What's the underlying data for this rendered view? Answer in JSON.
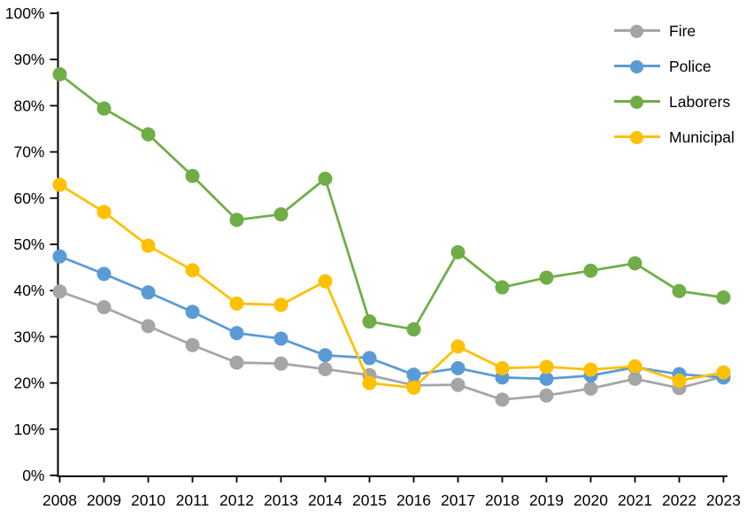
{
  "chart_data": {
    "type": "line",
    "title": "",
    "xlabel": "",
    "ylabel": "",
    "x": [
      2008,
      2009,
      2010,
      2011,
      2012,
      2013,
      2014,
      2015,
      2016,
      2017,
      2018,
      2019,
      2020,
      2021,
      2022,
      2023
    ],
    "ylim": [
      0,
      100
    ],
    "ytick_step": 10,
    "ytick_suffix": "%",
    "grid": false,
    "legend_position": "top-right",
    "axis_color": "#000000",
    "text_color": "#000000",
    "background_color": "#FFFFFF",
    "marker": "circle",
    "series": [
      {
        "name": "Fire",
        "color": "#A5A5A5",
        "values": [
          39.8,
          36.4,
          32.3,
          28.2,
          24.4,
          24.2,
          23.0,
          21.7,
          19.5,
          19.6,
          16.4,
          17.3,
          18.8,
          20.9,
          18.9,
          21.4
        ]
      },
      {
        "name": "Police",
        "color": "#5B9BD5",
        "values": [
          47.4,
          43.6,
          39.6,
          35.4,
          30.8,
          29.6,
          26.0,
          25.4,
          21.8,
          23.2,
          21.2,
          20.9,
          21.6,
          23.4,
          21.9,
          21.2
        ]
      },
      {
        "name": "Laborers",
        "color": "#70AD47",
        "values": [
          86.8,
          79.4,
          73.8,
          64.8,
          55.3,
          56.5,
          64.2,
          33.3,
          31.6,
          48.3,
          40.7,
          42.8,
          44.3,
          45.9,
          39.9,
          38.5
        ]
      },
      {
        "name": "Municipal",
        "color": "#FFC000",
        "values": [
          62.9,
          57.0,
          49.7,
          44.4,
          37.2,
          36.9,
          42.0,
          20.0,
          19.0,
          27.9,
          23.2,
          23.5,
          22.9,
          23.6,
          20.5,
          22.3
        ]
      }
    ]
  }
}
